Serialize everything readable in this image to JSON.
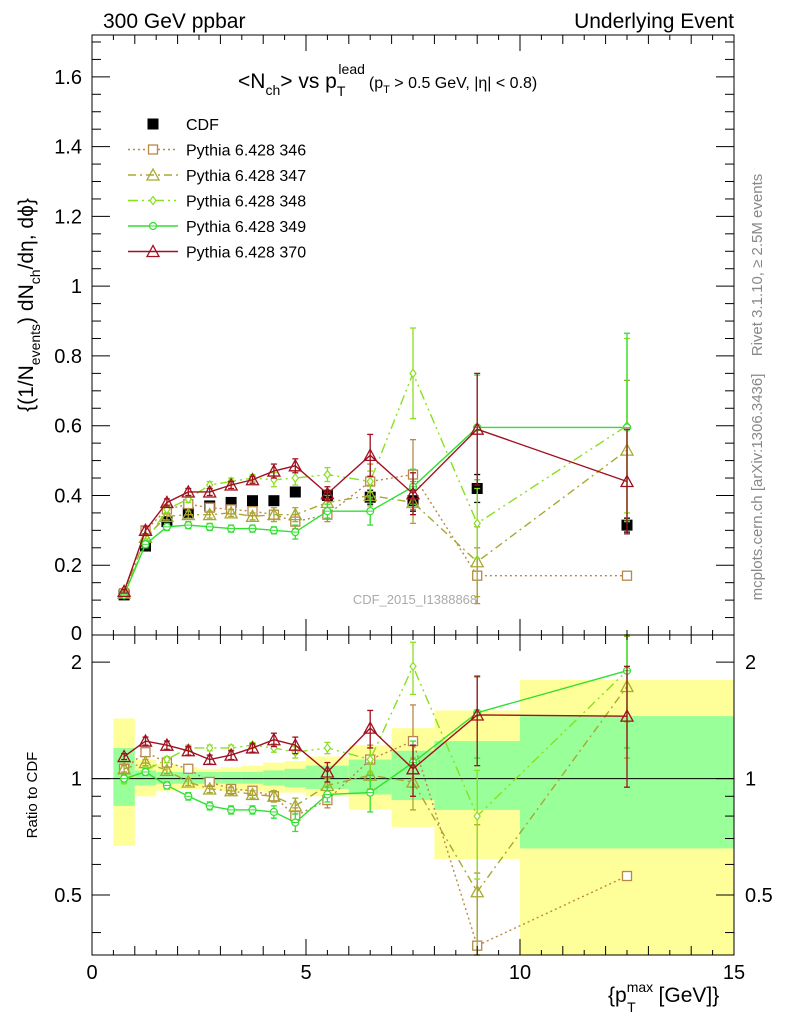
{
  "header": {
    "left": "300 GeV ppbar",
    "right": "Underlying Event"
  },
  "title": {
    "main": "<N",
    "sub_ch": "ch",
    "vs": "> vs p",
    "sub_T": "T",
    "sup_lead": "lead",
    "cut": "(p",
    "cut_sub": "T",
    "cut_rest": " > 0.5 GeV, |η| < 0.8)"
  },
  "ylabel": {
    "a": "{(1/N",
    "b": "events",
    "c": ") dN",
    "d": "ch",
    "e": "/dη, dϕ}"
  },
  "ratio_ylabel": "Ratio to CDF",
  "xlabel": {
    "a": "{p",
    "sup": "max",
    "sub": "T",
    "b": " [GeV]}"
  },
  "side_text": {
    "rivet": "Rivet 3.1.10, ≥ 2.5M events",
    "mcplots": "mcplots.cern.ch [arXiv:1306.3436]"
  },
  "watermark": "CDF_2015_I1388868",
  "colors": {
    "cdf": "#000000",
    "p346": "#b8884a",
    "p347": "#a8a830",
    "p348": "#88e020",
    "p349": "#30e030",
    "p370": "#a01020",
    "band_outer": "#ffff99",
    "band_inner": "#99ff99"
  },
  "chart_data": [
    {
      "type": "scatter",
      "panel": "main",
      "xlim": [
        0,
        15
      ],
      "ylim": [
        0,
        1.72
      ],
      "x_ticks": [
        0,
        5,
        10,
        15
      ],
      "y_ticks": [
        0.2,
        0.4,
        0.6,
        0.8,
        1,
        1.2,
        1.4,
        1.6
      ],
      "y_tick_labels": [
        "0.2",
        "0.4",
        "0.6",
        "0.8",
        "1",
        "1.2",
        "1.4",
        "1.6"
      ],
      "x_tick_labels": [
        "0",
        "5",
        "10",
        "15"
      ],
      "legend_position": "top-left",
      "series": [
        {
          "name": "CDF",
          "key": "cdf",
          "marker": "square",
          "line": "none",
          "x": [
            0.75,
            1.25,
            1.75,
            2.25,
            2.75,
            3.25,
            3.75,
            4.25,
            4.75,
            5.5,
            6.5,
            7.5,
            9.0,
            12.5
          ],
          "y": [
            0.115,
            0.255,
            0.325,
            0.35,
            0.37,
            0.38,
            0.385,
            0.385,
            0.41,
            0.4,
            0.395,
            0.385,
            0.42,
            0.315
          ],
          "err": [
            0.005,
            0.01,
            0.01,
            0.01,
            0.01,
            0.01,
            0.01,
            0.01,
            0.01,
            0.015,
            0.02,
            0.03,
            0.04,
            0.02
          ]
        },
        {
          "name": "Pythia 6.428 346",
          "key": "p346",
          "marker": "square-open",
          "line": "dotted",
          "x": [
            0.75,
            1.25,
            1.75,
            2.25,
            2.75,
            3.25,
            3.75,
            4.25,
            4.75,
            5.5,
            6.5,
            7.5,
            9.0,
            12.5
          ],
          "y": [
            0.12,
            0.3,
            0.36,
            0.375,
            0.365,
            0.36,
            0.355,
            0.345,
            0.325,
            0.345,
            0.44,
            0.46,
            0.17,
            0.17
          ],
          "err": [
            0.005,
            0.01,
            0.01,
            0.01,
            0.01,
            0.01,
            0.01,
            0.01,
            0.02,
            0.02,
            0.05,
            0.1,
            0.08,
            0.0
          ]
        },
        {
          "name": "Pythia 6.428 347",
          "key": "p347",
          "marker": "triangle-open",
          "line": "dashdot",
          "x": [
            0.75,
            1.25,
            1.75,
            2.25,
            2.75,
            3.25,
            3.75,
            4.25,
            4.75,
            5.5,
            6.5,
            7.5,
            9.0,
            12.5
          ],
          "y": [
            0.12,
            0.28,
            0.34,
            0.345,
            0.345,
            0.35,
            0.34,
            0.345,
            0.345,
            0.38,
            0.4,
            0.38,
            0.21,
            0.53
          ],
          "err": [
            0.005,
            0.01,
            0.01,
            0.01,
            0.01,
            0.01,
            0.01,
            0.02,
            0.02,
            0.02,
            0.03,
            0.06,
            0.1,
            0.2
          ]
        },
        {
          "name": "Pythia 6.428 348",
          "key": "p348",
          "marker": "diamond-open",
          "line": "dashdotdot",
          "x": [
            0.75,
            1.25,
            1.75,
            2.25,
            2.75,
            3.25,
            3.75,
            4.25,
            4.75,
            5.5,
            6.5,
            7.5,
            9.0,
            12.5
          ],
          "y": [
            0.115,
            0.265,
            0.36,
            0.39,
            0.43,
            0.44,
            0.45,
            0.445,
            0.45,
            0.46,
            0.44,
            0.75,
            0.32,
            0.6
          ],
          "err": [
            0.005,
            0.01,
            0.01,
            0.01,
            0.01,
            0.01,
            0.01,
            0.02,
            0.02,
            0.02,
            0.03,
            0.13,
            0.1,
            0.25
          ]
        },
        {
          "name": "Pythia 6.428 349",
          "key": "p349",
          "marker": "circle-cross",
          "line": "solid",
          "x": [
            0.75,
            1.25,
            1.75,
            2.25,
            2.75,
            3.25,
            3.75,
            4.25,
            4.75,
            5.5,
            6.5,
            7.5,
            9.0,
            12.5
          ],
          "y": [
            0.115,
            0.26,
            0.31,
            0.315,
            0.31,
            0.305,
            0.305,
            0.3,
            0.295,
            0.355,
            0.355,
            0.425,
            0.595,
            0.595
          ],
          "err": [
            0.005,
            0.01,
            0.01,
            0.01,
            0.01,
            0.01,
            0.01,
            0.01,
            0.02,
            0.02,
            0.04,
            0.05,
            0.15,
            0.27
          ]
        },
        {
          "name": "Pythia 6.428 370",
          "key": "p370",
          "marker": "triangle-open",
          "line": "solid",
          "x": [
            0.75,
            1.25,
            1.75,
            2.25,
            2.75,
            3.25,
            3.75,
            4.25,
            4.75,
            5.5,
            6.5,
            7.5,
            9.0,
            12.5
          ],
          "y": [
            0.125,
            0.3,
            0.38,
            0.41,
            0.41,
            0.43,
            0.445,
            0.47,
            0.485,
            0.405,
            0.515,
            0.405,
            0.59,
            0.44
          ],
          "err": [
            0.005,
            0.01,
            0.01,
            0.01,
            0.01,
            0.01,
            0.01,
            0.02,
            0.02,
            0.02,
            0.06,
            0.06,
            0.16,
            0.15
          ]
        }
      ]
    },
    {
      "type": "scatter",
      "panel": "ratio",
      "ylabel": "Ratio to CDF",
      "xlim": [
        0,
        15
      ],
      "ylim": [
        0.35,
        2.35
      ],
      "y_ticks": [
        0.5,
        1,
        2
      ],
      "y_tick_labels": [
        "0.5",
        "1",
        "2"
      ],
      "reference_line": 1,
      "bands": {
        "edges": [
          0.5,
          1.0,
          1.5,
          2.0,
          2.5,
          3.0,
          3.5,
          4.0,
          4.5,
          5.0,
          6.0,
          7.0,
          8.0,
          10.0,
          15.0
        ],
        "outer_lo": [
          0.67,
          0.9,
          0.93,
          0.94,
          0.94,
          0.93,
          0.93,
          0.92,
          0.92,
          0.9,
          0.83,
          0.75,
          0.62,
          0.35
        ],
        "outer_hi": [
          1.43,
          1.12,
          1.09,
          1.07,
          1.06,
          1.07,
          1.08,
          1.1,
          1.11,
          1.14,
          1.22,
          1.35,
          1.5,
          1.8
        ],
        "inner_lo": [
          0.85,
          0.96,
          0.97,
          0.97,
          0.97,
          0.97,
          0.97,
          0.96,
          0.95,
          0.94,
          0.91,
          0.88,
          0.83,
          0.66
        ],
        "inner_hi": [
          1.2,
          1.05,
          1.04,
          1.04,
          1.04,
          1.04,
          1.04,
          1.05,
          1.06,
          1.08,
          1.12,
          1.18,
          1.25,
          1.45
        ]
      },
      "series": [
        {
          "name": "Pythia 6.428 346",
          "key": "p346",
          "marker": "square-open",
          "line": "dotted",
          "x": [
            0.75,
            1.25,
            1.75,
            2.25,
            2.75,
            3.25,
            3.75,
            4.25,
            4.75,
            5.5,
            6.5,
            7.5,
            9.0,
            12.5
          ],
          "y": [
            1.06,
            1.17,
            1.1,
            1.06,
            0.98,
            0.94,
            0.93,
            0.9,
            0.8,
            0.88,
            1.12,
            1.25,
            0.37,
            0.56
          ],
          "err": [
            0.02,
            0.02,
            0.02,
            0.02,
            0.02,
            0.02,
            0.02,
            0.03,
            0.04,
            0.04,
            0.1,
            0.3,
            0.2,
            0.0
          ]
        },
        {
          "name": "Pythia 6.428 347",
          "key": "p347",
          "marker": "triangle-open",
          "line": "dashdot",
          "x": [
            0.75,
            1.25,
            1.75,
            2.25,
            2.75,
            3.25,
            3.75,
            4.25,
            4.75,
            5.5,
            6.5,
            7.5,
            9.0,
            12.5
          ],
          "y": [
            1.06,
            1.1,
            1.05,
            0.98,
            0.94,
            0.93,
            0.91,
            0.9,
            0.85,
            0.96,
            1.02,
            0.98,
            0.51,
            1.73
          ],
          "err": [
            0.02,
            0.02,
            0.02,
            0.02,
            0.02,
            0.02,
            0.02,
            0.03,
            0.04,
            0.04,
            0.08,
            0.15,
            0.25,
            0.6
          ]
        },
        {
          "name": "Pythia 6.428 348",
          "key": "p348",
          "marker": "diamond-open",
          "line": "dashdotdot",
          "x": [
            0.75,
            1.25,
            1.75,
            2.25,
            2.75,
            3.25,
            3.75,
            4.25,
            4.75,
            5.5,
            6.5,
            7.5,
            9.0,
            12.5
          ],
          "y": [
            0.99,
            1.05,
            1.12,
            1.2,
            1.2,
            1.2,
            1.22,
            1.2,
            1.17,
            1.2,
            1.12,
            1.95,
            0.8,
            1.9
          ],
          "err": [
            0.02,
            0.02,
            0.02,
            0.02,
            0.02,
            0.02,
            0.02,
            0.03,
            0.04,
            0.04,
            0.08,
            0.3,
            0.25,
            0.5
          ]
        },
        {
          "name": "Pythia 6.428 349",
          "key": "p349",
          "marker": "circle-cross",
          "line": "solid",
          "x": [
            0.75,
            1.25,
            1.75,
            2.25,
            2.75,
            3.25,
            3.75,
            4.25,
            4.75,
            5.5,
            6.5,
            7.5,
            9.0,
            12.5
          ],
          "y": [
            1.0,
            1.04,
            0.96,
            0.9,
            0.85,
            0.83,
            0.83,
            0.82,
            0.77,
            0.91,
            0.92,
            1.1,
            1.48,
            1.9
          ],
          "err": [
            0.02,
            0.02,
            0.02,
            0.02,
            0.02,
            0.02,
            0.02,
            0.03,
            0.04,
            0.04,
            0.1,
            0.15,
            0.35,
            0.7
          ]
        },
        {
          "name": "Pythia 6.428 370",
          "key": "p370",
          "marker": "triangle-open",
          "line": "solid",
          "x": [
            0.75,
            1.25,
            1.75,
            2.25,
            2.75,
            3.25,
            3.75,
            4.25,
            4.75,
            5.5,
            6.5,
            7.5,
            9.0,
            12.5
          ],
          "y": [
            1.14,
            1.25,
            1.22,
            1.18,
            1.12,
            1.15,
            1.2,
            1.26,
            1.22,
            1.04,
            1.35,
            1.06,
            1.46,
            1.45
          ],
          "err": [
            0.02,
            0.03,
            0.03,
            0.03,
            0.03,
            0.03,
            0.03,
            0.05,
            0.06,
            0.06,
            0.15,
            0.16,
            0.38,
            0.5
          ]
        }
      ]
    }
  ]
}
